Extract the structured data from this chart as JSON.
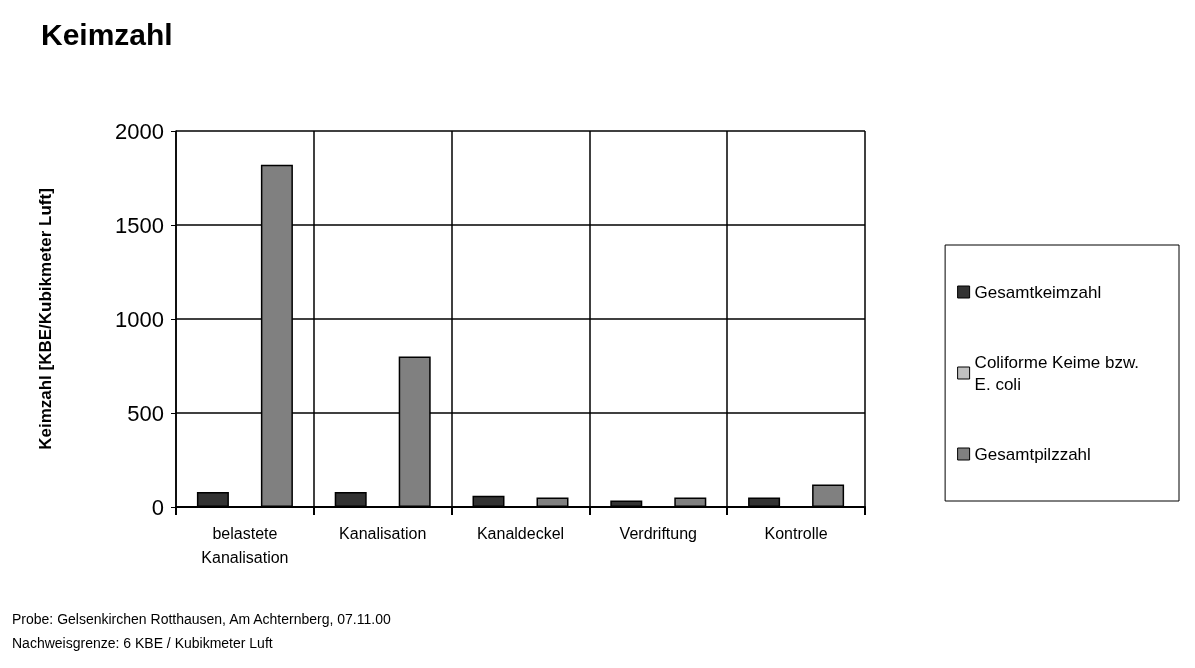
{
  "chart_data": {
    "type": "bar",
    "title": "Keimzahl",
    "ylabel": "Keimzahl [KBE/Kubikmeter Luft]",
    "categories": [
      "belastete\nKanalisation",
      "Kanalisation",
      "Kanaldeckel",
      "Verdriftung",
      "Kontrolle"
    ],
    "series": [
      {
        "name": "Gesamtkeimzahl",
        "color": "#333333",
        "values": [
          80,
          80,
          60,
          35,
          50
        ]
      },
      {
        "name": "Coliforme Keime bzw.\nE. coli",
        "color": "#c0c0c0",
        "values": [
          null,
          null,
          null,
          null,
          null
        ]
      },
      {
        "name": "Gesamtpilzzahl",
        "color": "#808080",
        "values": [
          1820,
          800,
          50,
          50,
          120
        ]
      }
    ],
    "ylim": [
      0,
      2000
    ],
    "yticks": [
      0,
      500,
      1000,
      1500,
      2000
    ],
    "grid": true,
    "legend": "right",
    "annotations": [
      "Probe: Gelsenkirchen Rotthausen, Am Achternberg, 07.11.00",
      "Nachweisgrenze: 6 KBE / Kubikmeter Luft"
    ]
  }
}
